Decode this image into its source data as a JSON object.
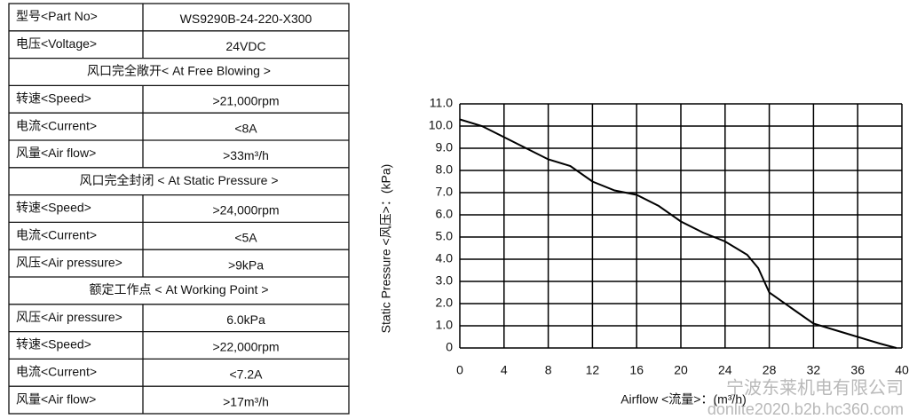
{
  "table": {
    "rows": [
      [
        "型号<Part No>",
        "WS9290B-24-220-X300"
      ],
      [
        "电压<Voltage>",
        "24VDC"
      ],
      [
        "风口完全敞开< At Free Blowing >"
      ],
      [
        "转速<Speed>",
        ">21,000rpm"
      ],
      [
        "电流<Current>",
        "<8A"
      ],
      [
        "风量<Air flow>",
        ">33m³/h"
      ],
      [
        "风口完全封闭 < At Static Pressure >"
      ],
      [
        "转速<Speed>",
        ">24,000rpm"
      ],
      [
        "电流<Current>",
        "<5A"
      ],
      [
        "风压<Air pressure>",
        ">9kPa"
      ],
      [
        "额定工作点 < At Working Point >"
      ],
      [
        "风压<Air pressure>",
        "6.0kPa"
      ],
      [
        "转速<Speed>",
        ">22,000rpm"
      ],
      [
        "电流<Current>",
        "<7.2A"
      ],
      [
        "风量<Air flow>",
        ">17m³/h"
      ]
    ]
  },
  "chart_data": {
    "type": "line",
    "x_label": "Airflow  <流量>：(m³/h)",
    "y_label": "Static  Pressure  <风压>：(kPa)",
    "x": [
      0,
      2,
      4,
      6,
      8,
      10,
      12,
      14,
      16,
      18,
      20,
      22,
      24,
      26,
      27,
      28,
      30,
      32,
      34,
      36,
      38,
      39.5
    ],
    "series": [
      {
        "color": "#000000",
        "values": [
          10.3,
          10.0,
          9.5,
          9.0,
          8.5,
          8.2,
          7.5,
          7.1,
          6.9,
          6.4,
          5.7,
          5.2,
          4.8,
          4.2,
          3.6,
          2.5,
          1.8,
          1.1,
          0.8,
          0.5,
          0.2,
          0
        ]
      }
    ],
    "xlim": [
      0,
      40
    ],
    "xticks": [
      0,
      4,
      8,
      12,
      16,
      20,
      24,
      28,
      32,
      36,
      40
    ],
    "ylim": [
      0,
      11
    ],
    "yticks": [
      0,
      {
        "value": 1,
        "label": "1.0"
      },
      {
        "value": 2,
        "label": "2.0"
      },
      {
        "value": 3,
        "label": "3.0"
      },
      {
        "value": 4,
        "label": "4.0"
      },
      {
        "value": 5,
        "label": "5.0"
      },
      {
        "value": 6,
        "label": "6.0"
      },
      {
        "value": 7,
        "label": "7.0"
      },
      {
        "value": 8,
        "label": "8.0"
      },
      {
        "value": 9,
        "label": "9.0"
      },
      {
        "value": 10,
        "label": "10.0"
      },
      {
        "value": 11,
        "label": "11.0"
      }
    ],
    "grid": true
  },
  "watermark": {
    "company": "宁波东莱机电有限公司",
    "site": "donlite2020.b2b.hc360.com"
  }
}
